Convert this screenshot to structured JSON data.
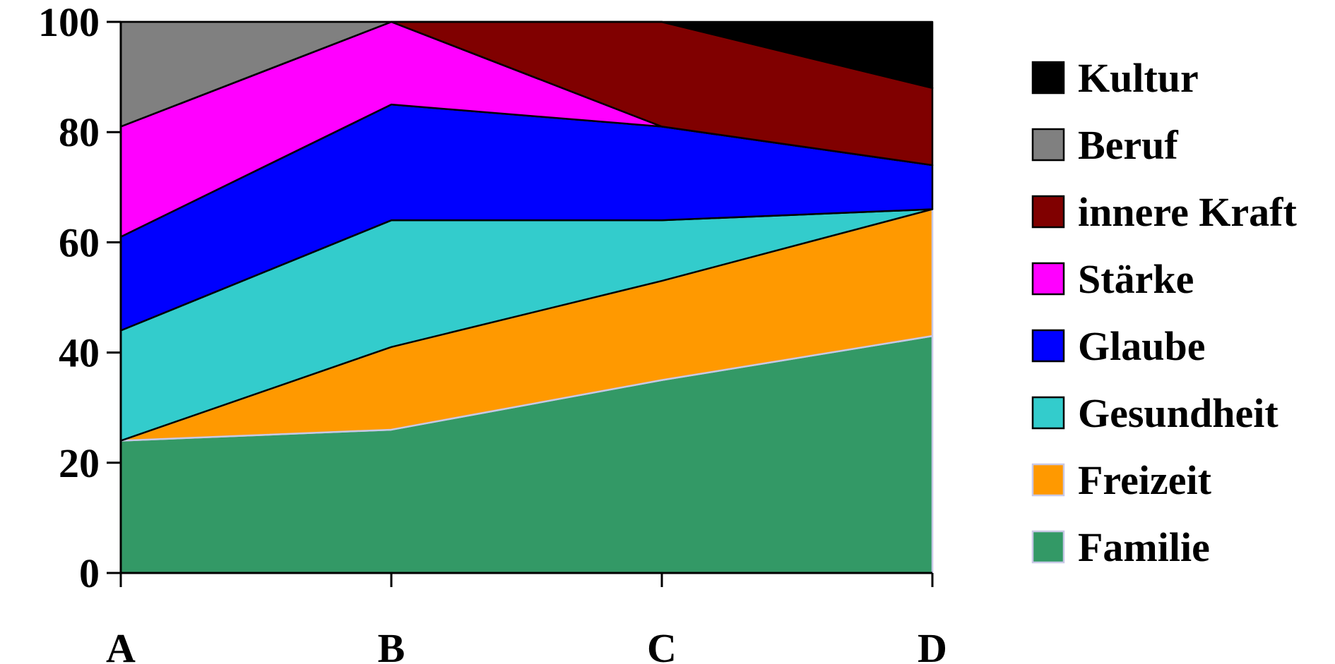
{
  "chart_data": {
    "type": "area",
    "stacked": true,
    "categories": [
      "A",
      "B",
      "C",
      "D"
    ],
    "ylim": [
      0,
      100
    ],
    "yticks": [
      0,
      20,
      40,
      60,
      80,
      100
    ],
    "ytick_labels": [
      "0",
      "20",
      "40",
      "60",
      "80",
      "100"
    ],
    "grid": false,
    "legend_position": "right",
    "series": [
      {
        "name": "Familie",
        "color": "#339966",
        "values": [
          24,
          26,
          35,
          43
        ]
      },
      {
        "name": "Freizeit",
        "color": "#FF9900",
        "values": [
          0,
          15,
          18,
          23
        ]
      },
      {
        "name": "Gesundheit",
        "color": "#33CCCC",
        "values": [
          20,
          23,
          11,
          0
        ]
      },
      {
        "name": "Glaube",
        "color": "#0000FF",
        "values": [
          17,
          21,
          17,
          8
        ]
      },
      {
        "name": "Stärke",
        "color": "#FF00FF",
        "values": [
          20,
          15,
          0,
          0
        ]
      },
      {
        "name": "innere Kraft",
        "color": "#800000",
        "values": [
          0,
          0,
          19,
          14
        ]
      },
      {
        "name": "Beruf",
        "color": "#808080",
        "values": [
          19,
          0,
          0,
          0
        ]
      },
      {
        "name": "Kultur",
        "color": "#000000",
        "values": [
          0,
          0,
          0,
          12
        ]
      }
    ]
  }
}
